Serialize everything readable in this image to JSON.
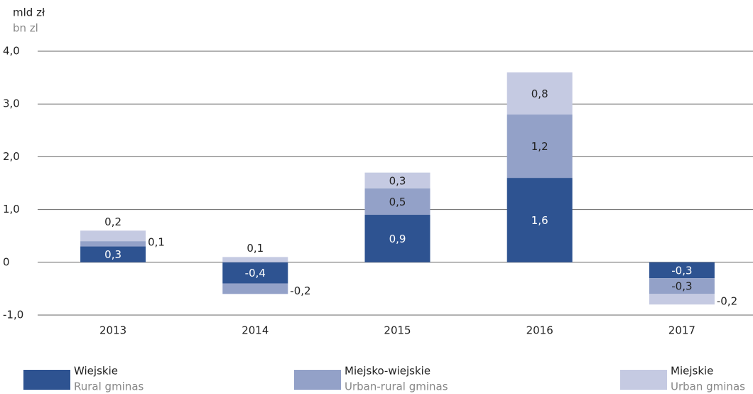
{
  "chart_data": {
    "type": "stacked_bar",
    "y_label": "mld zł",
    "y_label_en": "bn zl",
    "categories": [
      "2013",
      "2014",
      "2015",
      "2016",
      "2017"
    ],
    "series": [
      {
        "name": "Wiejskie",
        "name_en": "Rural gminas",
        "color": "#2e5391",
        "values": [
          0.3,
          -0.4,
          0.9,
          1.6,
          -0.3
        ],
        "value_labels": [
          "0,3",
          "-0,4",
          "0,9",
          "1,6",
          "-0,3"
        ]
      },
      {
        "name": "Miejsko-wiejskie",
        "name_en": "Urban-rural gminas",
        "color": "#93a1c8",
        "values": [
          0.1,
          -0.2,
          0.5,
          1.2,
          -0.3
        ],
        "value_labels": [
          "0,1",
          "-0,2",
          "0,5",
          "1,2",
          "-0,3"
        ]
      },
      {
        "name": "Miejskie",
        "name_en": "Urban gminas",
        "color": "#c5cae2",
        "values": [
          0.2,
          0.1,
          0.3,
          0.8,
          -0.2
        ],
        "value_labels": [
          "0,2",
          "0,1",
          "0,3",
          "0,8",
          "-0,2"
        ]
      }
    ],
    "ylim": [
      -1,
      4
    ],
    "yticks": [
      {
        "value": -1,
        "label": "-1,0"
      },
      0,
      {
        "value": 1,
        "label": "1,0"
      },
      {
        "value": 2,
        "label": "2,0"
      },
      {
        "value": 3,
        "label": "3,0"
      },
      {
        "value": 4,
        "label": "4,0"
      }
    ],
    "grid": true
  }
}
